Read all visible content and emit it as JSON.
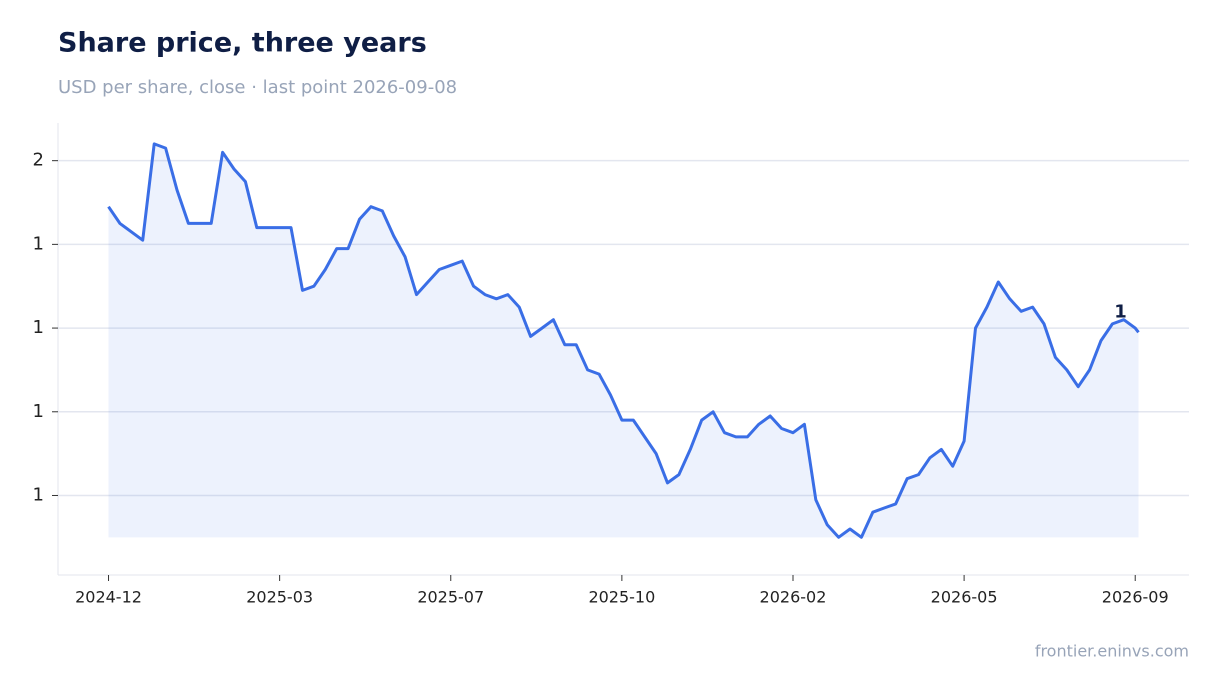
{
  "chart_data": {
    "type": "line",
    "title": "Share price, three years",
    "subtitle": "USD per share, close · last point 2026-09-08",
    "source": "frontier.eninvs.com",
    "x": [
      "2024-12-15",
      "2024-12-22",
      "2024-12-29",
      "2025-01-05",
      "2025-01-12",
      "2025-01-19",
      "2025-01-26",
      "2025-02-02",
      "2025-02-09",
      "2025-02-16",
      "2025-02-23",
      "2025-03-02",
      "2025-03-09",
      "2025-03-16",
      "2025-03-23",
      "2025-03-30",
      "2025-04-06",
      "2025-04-13",
      "2025-04-20",
      "2025-04-27",
      "2025-05-04",
      "2025-05-11",
      "2025-05-18",
      "2025-05-25",
      "2025-06-01",
      "2025-06-08",
      "2025-06-15",
      "2025-06-22",
      "2025-06-29",
      "2025-07-06",
      "2025-07-13",
      "2025-07-20",
      "2025-07-27",
      "2025-08-03",
      "2025-08-10",
      "2025-08-17",
      "2025-08-24",
      "2025-08-31",
      "2025-09-07",
      "2025-09-14",
      "2025-09-21",
      "2025-09-28",
      "2025-10-05",
      "2025-10-12",
      "2025-10-19",
      "2025-10-26",
      "2025-11-02",
      "2025-11-09",
      "2025-11-16",
      "2025-11-23",
      "2025-11-30",
      "2025-12-07",
      "2025-12-14",
      "2025-12-21",
      "2025-12-28",
      "2026-01-04",
      "2026-01-11",
      "2026-01-18",
      "2026-01-25",
      "2026-02-01",
      "2026-02-08",
      "2026-02-15",
      "2026-02-22",
      "2026-03-01",
      "2026-03-08",
      "2026-03-15",
      "2026-03-22",
      "2026-03-29",
      "2026-04-05",
      "2026-04-12",
      "2026-04-19",
      "2026-04-26",
      "2026-05-03",
      "2026-05-10",
      "2026-05-17",
      "2026-05-24",
      "2026-05-31",
      "2026-06-07",
      "2026-06-14",
      "2026-06-21",
      "2026-06-28",
      "2026-07-05",
      "2026-07-12",
      "2026-07-19",
      "2026-07-26",
      "2026-08-02",
      "2026-08-09",
      "2026-08-16",
      "2026-08-23",
      "2026-08-30",
      "2026-09-06",
      "2026-09-08"
    ],
    "series": [
      {
        "name": "Share price",
        "color": "#3a6ee6",
        "values": [
          1.49,
          1.45,
          1.43,
          1.41,
          1.64,
          1.63,
          1.53,
          1.45,
          1.45,
          1.45,
          1.62,
          1.58,
          1.55,
          1.44,
          1.44,
          1.44,
          1.44,
          1.29,
          1.3,
          1.34,
          1.39,
          1.39,
          1.46,
          1.49,
          1.48,
          1.42,
          1.37,
          1.28,
          1.31,
          1.34,
          1.35,
          1.36,
          1.3,
          1.28,
          1.27,
          1.28,
          1.25,
          1.18,
          1.2,
          1.22,
          1.16,
          1.16,
          1.1,
          1.09,
          1.04,
          0.98,
          0.98,
          0.94,
          0.9,
          0.83,
          0.85,
          0.91,
          0.98,
          1.0,
          0.95,
          0.94,
          0.94,
          0.97,
          0.99,
          0.96,
          0.95,
          0.97,
          0.79,
          0.73,
          0.7,
          0.72,
          0.7,
          0.76,
          0.77,
          0.78,
          0.84,
          0.85,
          0.89,
          0.91,
          0.87,
          0.93,
          1.2,
          1.25,
          1.31,
          1.27,
          1.24,
          1.25,
          1.21,
          1.13,
          1.1,
          1.06,
          1.1,
          1.17,
          1.21,
          1.22,
          1.2,
          1.19
        ],
        "value_labels": [
          null,
          null,
          null,
          null,
          null,
          null,
          null,
          null,
          null,
          null,
          null,
          null,
          null,
          null,
          null,
          null,
          null,
          null,
          null,
          null,
          null,
          null,
          null,
          null,
          null,
          null,
          null,
          null,
          null,
          null,
          null,
          null,
          null,
          null,
          null,
          null,
          null,
          null,
          null,
          null,
          null,
          null,
          null,
          null,
          null,
          null,
          null,
          null,
          null,
          null,
          null,
          null,
          null,
          null,
          null,
          null,
          null,
          null,
          null,
          null,
          null,
          null,
          null,
          null,
          null,
          null,
          null,
          null,
          null,
          null,
          null,
          null,
          null,
          null,
          null,
          null,
          null,
          null,
          null,
          null,
          null,
          null,
          null,
          null,
          null,
          null,
          null,
          null,
          null,
          null,
          null,
          "1"
        ]
      }
    ],
    "xlim": [
      "2024-11-14",
      "2026-10-09"
    ],
    "xticks": [
      {
        "value": "2024-12-15",
        "label": "2024-12"
      },
      {
        "value": "2025-03-30",
        "label": "2025-03"
      },
      {
        "value": "2025-07-13",
        "label": "2025-07"
      },
      {
        "value": "2025-10-26",
        "label": "2025-10"
      },
      {
        "value": "2026-02-08",
        "label": "2026-02"
      },
      {
        "value": "2026-05-24",
        "label": "2026-05"
      },
      {
        "value": "2026-09-06",
        "label": "2026-09"
      }
    ],
    "ylim": [
      0.61,
      1.69
    ],
    "yticks": [
      {
        "value": 1.6,
        "label": "2"
      },
      {
        "value": 1.4,
        "label": "1"
      },
      {
        "value": 1.2,
        "label": "1"
      },
      {
        "value": 1.0,
        "label": "1"
      },
      {
        "value": 0.8,
        "label": "1"
      }
    ],
    "grid": true
  }
}
